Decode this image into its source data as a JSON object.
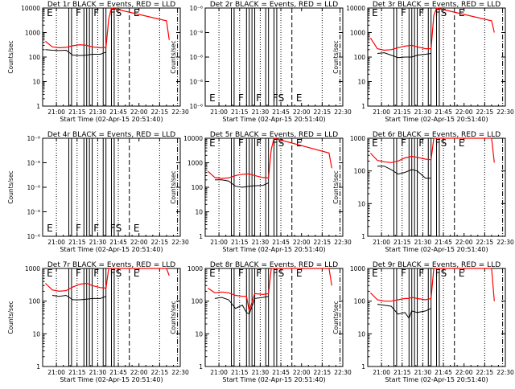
{
  "chart_data": {
    "type": "line",
    "x_ticks": [
      "21:00",
      "21:15",
      "21:30",
      "21:45",
      "22:00",
      "22:15",
      "22:30"
    ],
    "xlabel": "Start Time (02-Apr-15 20:51:40)",
    "ylabel": "Counts/sec",
    "y_ticks_log": [
      "1",
      "10",
      "100",
      "1000",
      "10000"
    ],
    "y_ticks_tiny": [
      "10⁻⁶",
      "10⁻⁶",
      "10⁻⁶",
      "10⁻⁶",
      "10⁻⁶"
    ],
    "flag_letters": [
      "E",
      "F",
      "F",
      "F",
      "S",
      "E"
    ],
    "colors": {
      "events": "#000000",
      "lld": "#ff0000"
    },
    "panels": [
      {
        "title": "Det 1r BLACK = Events, RED = LLD",
        "mode": "log",
        "ymax": 4,
        "black": [
          [
            0,
            200
          ],
          [
            5,
            190
          ],
          [
            10,
            185
          ],
          [
            15,
            190
          ],
          [
            20,
            120
          ],
          [
            25,
            115
          ],
          [
            30,
            120
          ],
          [
            34,
            130
          ],
          [
            40,
            130
          ],
          [
            44,
            160
          ]
        ],
        "red": [
          [
            0,
            440
          ],
          [
            5,
            260
          ],
          [
            10,
            240
          ],
          [
            15,
            250
          ],
          [
            20,
            290
          ],
          [
            25,
            320
          ],
          [
            30,
            300
          ],
          [
            34,
            260
          ],
          [
            40,
            240
          ],
          [
            44,
            250
          ],
          [
            46,
            3500
          ],
          [
            48,
            10000
          ],
          [
            88,
            3000
          ],
          [
            90,
            500
          ]
        ]
      },
      {
        "title": "Det 2r BLACK = Events, RED = LLD",
        "mode": "tiny",
        "black": [],
        "red": []
      },
      {
        "title": "Det 3r BLACK = Events, RED = LLD",
        "mode": "log",
        "ymax": 4,
        "black": [
          [
            5,
            140
          ],
          [
            10,
            150
          ],
          [
            15,
            120
          ],
          [
            20,
            95
          ],
          [
            25,
            100
          ],
          [
            30,
            100
          ],
          [
            34,
            120
          ],
          [
            40,
            130
          ],
          [
            44,
            140
          ]
        ],
        "red": [
          [
            0,
            600
          ],
          [
            5,
            220
          ],
          [
            10,
            190
          ],
          [
            15,
            200
          ],
          [
            20,
            240
          ],
          [
            25,
            280
          ],
          [
            30,
            300
          ],
          [
            34,
            260
          ],
          [
            40,
            220
          ],
          [
            44,
            220
          ],
          [
            46,
            5000
          ],
          [
            48,
            10000
          ],
          [
            88,
            3000
          ],
          [
            90,
            1000
          ]
        ]
      },
      {
        "title": "Det 4r BLACK = Events, RED = LLD",
        "mode": "tiny",
        "black": [],
        "red": []
      },
      {
        "title": "Det 5r BLACK = Events, RED = LLD",
        "mode": "log",
        "ymax": 4,
        "black": [
          [
            5,
            200
          ],
          [
            10,
            200
          ],
          [
            15,
            180
          ],
          [
            20,
            110
          ],
          [
            25,
            100
          ],
          [
            30,
            110
          ],
          [
            34,
            115
          ],
          [
            40,
            120
          ],
          [
            44,
            150
          ]
        ],
        "red": [
          [
            0,
            450
          ],
          [
            5,
            250
          ],
          [
            10,
            230
          ],
          [
            15,
            240
          ],
          [
            20,
            300
          ],
          [
            25,
            340
          ],
          [
            30,
            350
          ],
          [
            34,
            300
          ],
          [
            40,
            250
          ],
          [
            44,
            240
          ],
          [
            46,
            3500
          ],
          [
            48,
            10000
          ],
          [
            88,
            2500
          ],
          [
            90,
            600
          ]
        ]
      },
      {
        "title": "Det 6r BLACK = Events, RED = LLD",
        "mode": "log",
        "ymax": 3,
        "black": [
          [
            5,
            140
          ],
          [
            10,
            140
          ],
          [
            15,
            110
          ],
          [
            20,
            80
          ],
          [
            25,
            90
          ],
          [
            30,
            110
          ],
          [
            34,
            100
          ],
          [
            40,
            60
          ],
          [
            44,
            60
          ]
        ],
        "red": [
          [
            0,
            350
          ],
          [
            5,
            210
          ],
          [
            10,
            190
          ],
          [
            15,
            180
          ],
          [
            20,
            200
          ],
          [
            25,
            250
          ],
          [
            30,
            280
          ],
          [
            34,
            260
          ],
          [
            40,
            230
          ],
          [
            44,
            220
          ],
          [
            46,
            1000
          ],
          [
            48,
            1000
          ],
          [
            88,
            1000
          ],
          [
            90,
            180
          ]
        ]
      },
      {
        "title": "Det 7r BLACK = Events, RED = LLD",
        "mode": "log",
        "ymax": 3,
        "black": [
          [
            5,
            150
          ],
          [
            10,
            140
          ],
          [
            15,
            150
          ],
          [
            20,
            110
          ],
          [
            25,
            110
          ],
          [
            30,
            115
          ],
          [
            34,
            120
          ],
          [
            40,
            120
          ],
          [
            44,
            140
          ]
        ],
        "red": [
          [
            0,
            350
          ],
          [
            5,
            220
          ],
          [
            10,
            200
          ],
          [
            15,
            210
          ],
          [
            20,
            270
          ],
          [
            25,
            330
          ],
          [
            30,
            350
          ],
          [
            34,
            300
          ],
          [
            40,
            260
          ],
          [
            44,
            250
          ],
          [
            46,
            1000
          ],
          [
            48,
            1000
          ],
          [
            88,
            1000
          ],
          [
            90,
            600
          ]
        ]
      },
      {
        "title": "Det 8r BLACK = Events, RED = LLD",
        "mode": "log",
        "ymax": 3,
        "black": [
          [
            5,
            120
          ],
          [
            10,
            130
          ],
          [
            15,
            110
          ],
          [
            20,
            60
          ],
          [
            25,
            75
          ],
          [
            28,
            45
          ],
          [
            30,
            40
          ],
          [
            34,
            120
          ],
          [
            40,
            130
          ],
          [
            44,
            140
          ]
        ],
        "red": [
          [
            0,
            250
          ],
          [
            5,
            180
          ],
          [
            10,
            190
          ],
          [
            15,
            180
          ],
          [
            20,
            150
          ],
          [
            25,
            140
          ],
          [
            28,
            140
          ],
          [
            30,
            50
          ],
          [
            34,
            170
          ],
          [
            40,
            160
          ],
          [
            44,
            170
          ],
          [
            46,
            1000
          ],
          [
            48,
            1000
          ],
          [
            88,
            1000
          ],
          [
            90,
            300
          ]
        ]
      },
      {
        "title": "Det 9r BLACK = Events, RED = LLD",
        "mode": "log",
        "ymax": 3,
        "black": [
          [
            5,
            80
          ],
          [
            10,
            75
          ],
          [
            15,
            70
          ],
          [
            20,
            40
          ],
          [
            25,
            45
          ],
          [
            28,
            30
          ],
          [
            30,
            50
          ],
          [
            34,
            45
          ],
          [
            40,
            50
          ],
          [
            44,
            60
          ]
        ],
        "red": [
          [
            0,
            180
          ],
          [
            5,
            110
          ],
          [
            10,
            100
          ],
          [
            15,
            100
          ],
          [
            20,
            110
          ],
          [
            25,
            120
          ],
          [
            28,
            120
          ],
          [
            30,
            130
          ],
          [
            34,
            120
          ],
          [
            40,
            110
          ],
          [
            44,
            120
          ],
          [
            46,
            1000
          ],
          [
            48,
            1000
          ],
          [
            88,
            1000
          ],
          [
            90,
            100
          ]
        ]
      }
    ]
  }
}
